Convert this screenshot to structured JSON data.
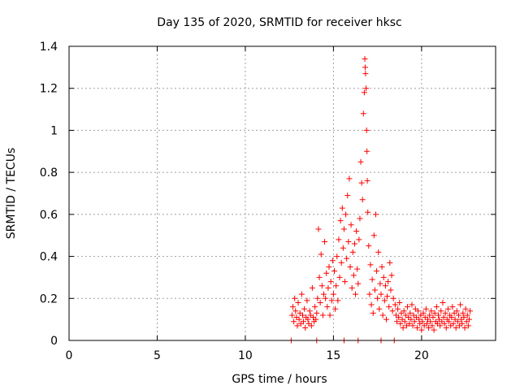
{
  "chart_data": {
    "type": "scatter",
    "title": "Day 135 of 2020, SRMTID for receiver hksc",
    "xlabel": "GPS time / hours",
    "ylabel": "SRMTID / TECUs",
    "xlim": [
      0,
      24.2
    ],
    "ylim": [
      0,
      1.4
    ],
    "x_ticks": [
      0,
      5,
      10,
      15,
      20
    ],
    "x_tick_labels": [
      "0",
      "5",
      "10",
      "15",
      "20"
    ],
    "y_ticks": [
      0,
      0.2,
      0.4,
      0.6,
      0.8,
      1.0,
      1.2,
      1.4
    ],
    "y_tick_labels": [
      "0",
      "0.2",
      "0.4",
      "0.6",
      "0.8",
      "1",
      "1.2",
      "1.4"
    ],
    "grid": true,
    "marker": "+",
    "color": "#ff0000",
    "series": [
      {
        "name": "SRMTID",
        "points": [
          [
            12.6,
            0.0
          ],
          [
            12.65,
            0.12
          ],
          [
            12.7,
            0.16
          ],
          [
            12.75,
            0.09
          ],
          [
            12.8,
            0.2
          ],
          [
            12.85,
            0.14
          ],
          [
            12.9,
            0.11
          ],
          [
            12.95,
            0.07
          ],
          [
            13.0,
            0.18
          ],
          [
            13.05,
            0.1
          ],
          [
            13.1,
            0.13
          ],
          [
            13.15,
            0.08
          ],
          [
            13.2,
            0.22
          ],
          [
            13.25,
            0.12
          ],
          [
            13.3,
            0.09
          ],
          [
            13.35,
            0.15
          ],
          [
            13.4,
            0.06
          ],
          [
            13.45,
            0.11
          ],
          [
            13.5,
            0.19
          ],
          [
            13.55,
            0.1
          ],
          [
            13.6,
            0.08
          ],
          [
            13.65,
            0.14
          ],
          [
            13.7,
            0.12
          ],
          [
            13.75,
            0.07
          ],
          [
            13.8,
            0.25
          ],
          [
            13.85,
            0.11
          ],
          [
            13.9,
            0.09
          ],
          [
            13.95,
            0.16
          ],
          [
            14.0,
            0.1
          ],
          [
            14.05,
            0.0
          ],
          [
            14.05,
            0.13
          ],
          [
            14.1,
            0.2
          ],
          [
            14.15,
            0.53
          ],
          [
            14.2,
            0.3
          ],
          [
            14.25,
            0.18
          ],
          [
            14.3,
            0.41
          ],
          [
            14.35,
            0.26
          ],
          [
            14.4,
            0.12
          ],
          [
            14.45,
            0.22
          ],
          [
            14.5,
            0.47
          ],
          [
            14.55,
            0.2
          ],
          [
            14.6,
            0.32
          ],
          [
            14.65,
            0.16
          ],
          [
            14.7,
            0.25
          ],
          [
            14.75,
            0.35
          ],
          [
            14.8,
            0.12
          ],
          [
            14.85,
            0.28
          ],
          [
            14.9,
            0.19
          ],
          [
            14.95,
            0.38
          ],
          [
            15.0,
            0.22
          ],
          [
            15.05,
            0.33
          ],
          [
            15.1,
            0.15
          ],
          [
            15.15,
            0.26
          ],
          [
            15.2,
            0.4
          ],
          [
            15.25,
            0.19
          ],
          [
            15.3,
            0.48
          ],
          [
            15.35,
            0.3
          ],
          [
            15.4,
            0.57
          ],
          [
            15.45,
            0.37
          ],
          [
            15.5,
            0.63
          ],
          [
            15.55,
            0.44
          ],
          [
            15.6,
            0.0
          ],
          [
            15.6,
            0.53
          ],
          [
            15.65,
            0.28
          ],
          [
            15.7,
            0.6
          ],
          [
            15.75,
            0.39
          ],
          [
            15.8,
            0.69
          ],
          [
            15.85,
            0.47
          ],
          [
            15.9,
            0.77
          ],
          [
            15.95,
            0.35
          ],
          [
            16.0,
            0.55
          ],
          [
            16.05,
            0.25
          ],
          [
            16.1,
            0.42
          ],
          [
            16.15,
            0.31
          ],
          [
            16.2,
            0.46
          ],
          [
            16.25,
            0.22
          ],
          [
            16.3,
            0.52
          ],
          [
            16.35,
            0.34
          ],
          [
            16.4,
            0.0
          ],
          [
            16.4,
            0.27
          ],
          [
            16.45,
            0.48
          ],
          [
            16.5,
            0.58
          ],
          [
            16.55,
            0.85
          ],
          [
            16.6,
            0.75
          ],
          [
            16.65,
            0.67
          ],
          [
            16.7,
            1.08
          ],
          [
            16.75,
            1.18
          ],
          [
            16.78,
            1.34
          ],
          [
            16.8,
            1.3
          ],
          [
            16.82,
            1.27
          ],
          [
            16.85,
            1.2
          ],
          [
            16.88,
            1.0
          ],
          [
            16.9,
            0.9
          ],
          [
            16.92,
            0.76
          ],
          [
            16.95,
            0.61
          ],
          [
            17.0,
            0.45
          ],
          [
            17.05,
            0.22
          ],
          [
            17.1,
            0.36
          ],
          [
            17.15,
            0.17
          ],
          [
            17.2,
            0.29
          ],
          [
            17.25,
            0.13
          ],
          [
            17.3,
            0.5
          ],
          [
            17.35,
            0.24
          ],
          [
            17.4,
            0.6
          ],
          [
            17.45,
            0.33
          ],
          [
            17.5,
            0.2
          ],
          [
            17.55,
            0.42
          ],
          [
            17.6,
            0.15
          ],
          [
            17.65,
            0.27
          ],
          [
            17.7,
            0.0
          ],
          [
            17.7,
            0.22
          ],
          [
            17.75,
            0.35
          ],
          [
            17.8,
            0.12
          ],
          [
            17.85,
            0.3
          ],
          [
            17.9,
            0.19
          ],
          [
            17.95,
            0.26
          ],
          [
            18.0,
            0.1
          ],
          [
            18.05,
            0.21
          ],
          [
            18.1,
            0.28
          ],
          [
            18.15,
            0.16
          ],
          [
            18.2,
            0.37
          ],
          [
            18.25,
            0.24
          ],
          [
            18.3,
            0.31
          ],
          [
            18.35,
            0.14
          ],
          [
            18.4,
            0.2
          ],
          [
            18.45,
            0.0
          ],
          [
            18.5,
            0.17
          ],
          [
            18.55,
            0.12
          ],
          [
            18.6,
            0.09
          ],
          [
            18.65,
            0.15
          ],
          [
            18.7,
            0.11
          ],
          [
            18.75,
            0.18
          ],
          [
            18.8,
            0.08
          ],
          [
            18.85,
            0.13
          ],
          [
            18.9,
            0.1
          ],
          [
            18.95,
            0.06
          ],
          [
            19.0,
            0.14
          ],
          [
            19.05,
            0.09
          ],
          [
            19.1,
            0.12
          ],
          [
            19.15,
            0.07
          ],
          [
            19.2,
            0.16
          ],
          [
            19.25,
            0.11
          ],
          [
            19.3,
            0.08
          ],
          [
            19.35,
            0.13
          ],
          [
            19.4,
            0.1
          ],
          [
            19.45,
            0.17
          ],
          [
            19.5,
            0.07
          ],
          [
            19.55,
            0.12
          ],
          [
            19.6,
            0.09
          ],
          [
            19.65,
            0.15
          ],
          [
            19.7,
            0.11
          ],
          [
            19.75,
            0.06
          ],
          [
            19.8,
            0.14
          ],
          [
            19.85,
            0.1
          ],
          [
            19.9,
            0.08
          ],
          [
            19.95,
            0.12
          ],
          [
            20.0,
            0.05
          ],
          [
            20.05,
            0.09
          ],
          [
            20.1,
            0.13
          ],
          [
            20.15,
            0.07
          ],
          [
            20.2,
            0.11
          ],
          [
            20.25,
            0.15
          ],
          [
            20.3,
            0.08
          ],
          [
            20.35,
            0.1
          ],
          [
            20.4,
            0.06
          ],
          [
            20.45,
            0.12
          ],
          [
            20.5,
            0.09
          ],
          [
            20.55,
            0.14
          ],
          [
            20.6,
            0.07
          ],
          [
            20.65,
            0.11
          ],
          [
            20.7,
            0.05
          ],
          [
            20.75,
            0.13
          ],
          [
            20.8,
            0.09
          ],
          [
            20.85,
            0.16
          ],
          [
            20.9,
            0.08
          ],
          [
            20.95,
            0.12
          ],
          [
            21.0,
            0.1
          ],
          [
            21.05,
            0.07
          ],
          [
            21.1,
            0.14
          ],
          [
            21.15,
            0.09
          ],
          [
            21.2,
            0.18
          ],
          [
            21.25,
            0.11
          ],
          [
            21.3,
            0.08
          ],
          [
            21.35,
            0.13
          ],
          [
            21.4,
            0.06
          ],
          [
            21.45,
            0.1
          ],
          [
            21.5,
            0.15
          ],
          [
            21.55,
            0.09
          ],
          [
            21.6,
            0.12
          ],
          [
            21.65,
            0.07
          ],
          [
            21.7,
            0.11
          ],
          [
            21.75,
            0.16
          ],
          [
            21.8,
            0.08
          ],
          [
            21.85,
            0.13
          ],
          [
            21.9,
            0.1
          ],
          [
            21.95,
            0.06
          ],
          [
            22.0,
            0.14
          ],
          [
            22.05,
            0.09
          ],
          [
            22.1,
            0.12
          ],
          [
            22.15,
            0.07
          ],
          [
            22.2,
            0.17
          ],
          [
            22.25,
            0.1
          ],
          [
            22.3,
            0.08
          ],
          [
            22.35,
            0.13
          ],
          [
            22.4,
            0.11
          ],
          [
            22.45,
            0.06
          ],
          [
            22.5,
            0.15
          ],
          [
            22.55,
            0.09
          ],
          [
            22.6,
            0.12
          ],
          [
            22.65,
            0.07
          ],
          [
            22.7,
            0.1
          ],
          [
            22.75,
            0.14
          ]
        ]
      }
    ]
  }
}
